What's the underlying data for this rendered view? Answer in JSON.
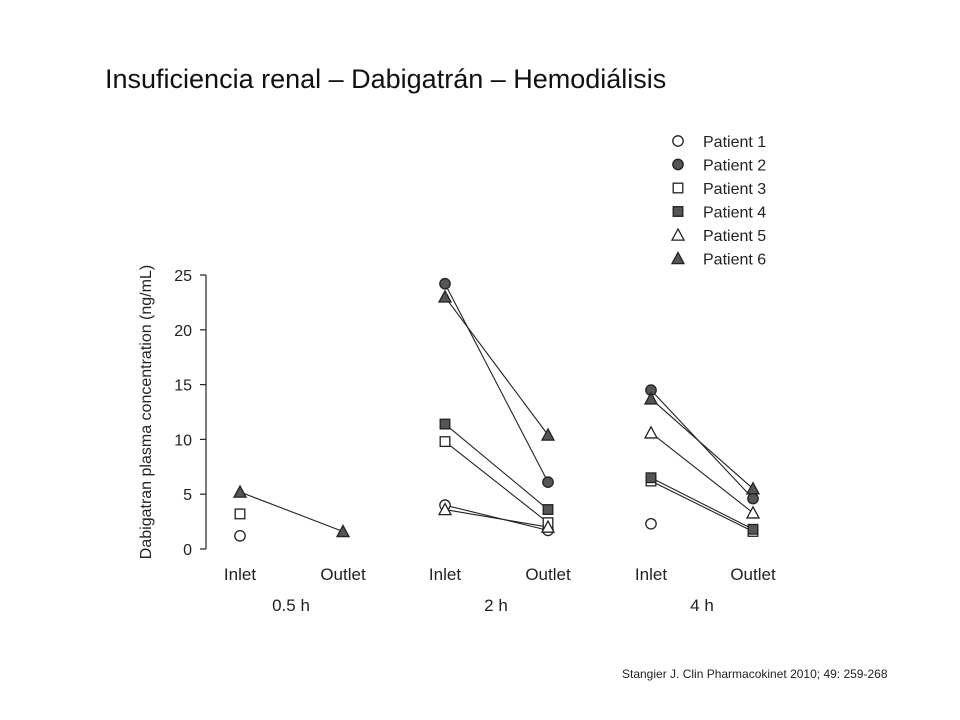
{
  "slide": {
    "title": "Insuficiencia renal – Dabigatrán – Hemodiálisis",
    "citation": "Stangier J. Clin Pharmacokinet 2010; 49: 259-268"
  },
  "colors": {
    "filled_marker": "#555555",
    "open_marker": "#ffffff",
    "stroke": "#222222"
  },
  "chart_data": {
    "type": "scatter",
    "title": "",
    "xlabel": "",
    "ylabel": "Dabigatran plasma concentration (ng/mL)",
    "ylim": [
      0,
      25
    ],
    "yticks": [
      0,
      5,
      10,
      15,
      20,
      25
    ],
    "grid": false,
    "legend_position": "top-right",
    "groups": [
      {
        "label": "0.5 h",
        "categories": [
          "Inlet",
          "Outlet"
        ]
      },
      {
        "label": "2 h",
        "categories": [
          "Inlet",
          "Outlet"
        ]
      },
      {
        "label": "4 h",
        "categories": [
          "Inlet",
          "Outlet"
        ]
      }
    ],
    "categories": [
      "0.5 h Inlet",
      "0.5 h Outlet",
      "2 h Inlet",
      "2 h Outlet",
      "4 h Inlet",
      "4 h Outlet"
    ],
    "series": [
      {
        "name": "Patient 1",
        "marker": "circle",
        "filled": false,
        "values": [
          1.2,
          null,
          4.0,
          1.7,
          2.3,
          null
        ]
      },
      {
        "name": "Patient 2",
        "marker": "circle",
        "filled": true,
        "values": [
          null,
          null,
          24.2,
          6.1,
          14.5,
          4.6
        ]
      },
      {
        "name": "Patient 3",
        "marker": "square",
        "filled": false,
        "values": [
          3.2,
          null,
          9.8,
          2.4,
          6.2,
          1.6
        ]
      },
      {
        "name": "Patient 4",
        "marker": "square",
        "filled": true,
        "values": [
          null,
          null,
          11.4,
          3.6,
          6.5,
          1.8
        ]
      },
      {
        "name": "Patient 5",
        "marker": "triangle",
        "filled": false,
        "values": [
          null,
          null,
          3.6,
          2.0,
          10.6,
          3.3
        ]
      },
      {
        "name": "Patient 6",
        "marker": "triangle",
        "filled": true,
        "values": [
          5.2,
          1.6,
          23.0,
          10.4,
          13.7,
          5.5
        ]
      }
    ]
  }
}
